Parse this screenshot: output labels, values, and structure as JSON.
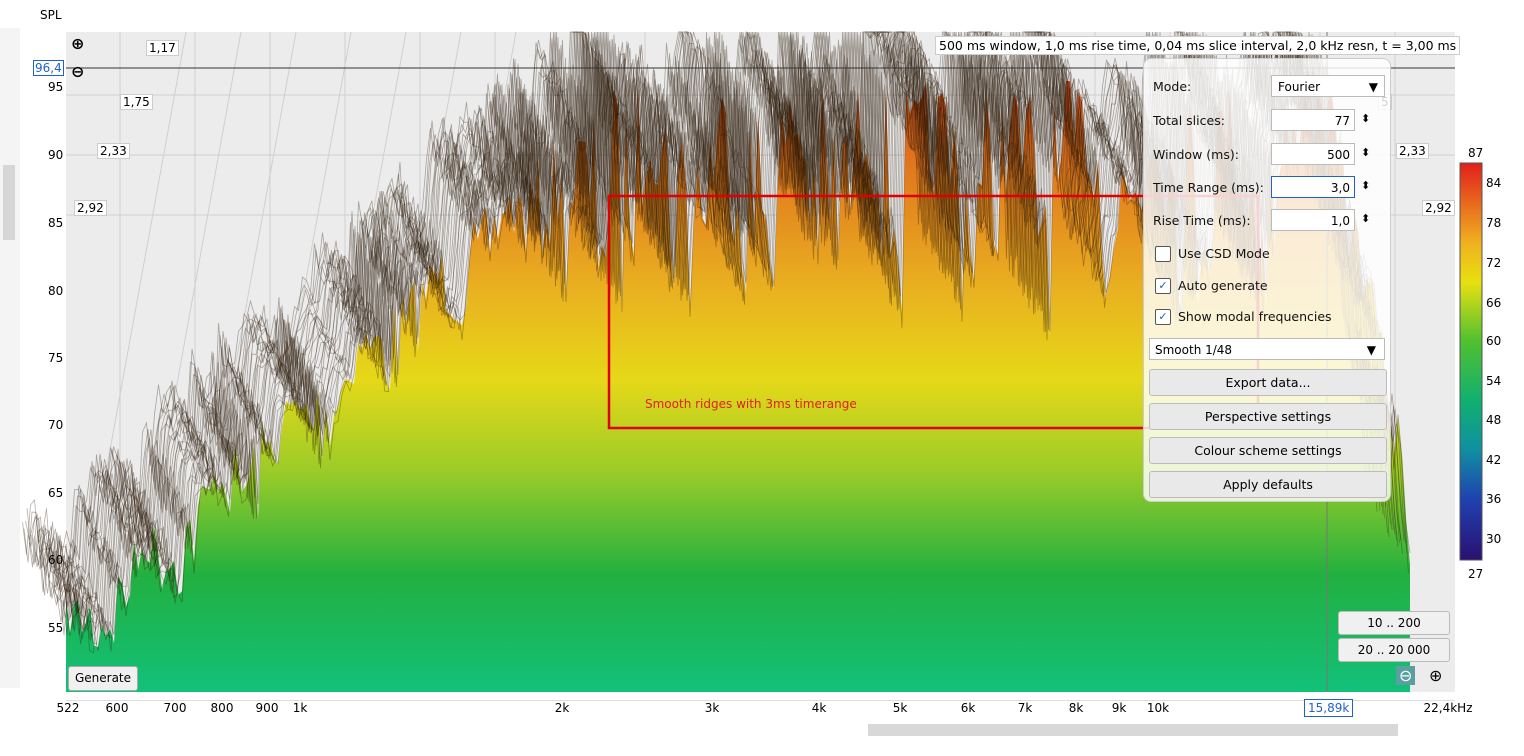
{
  "y_axis": {
    "title": "SPL",
    "cursor_value": "96,4",
    "ticks": [
      "95",
      "90",
      "85",
      "80",
      "75",
      "70",
      "65",
      "60",
      "55"
    ]
  },
  "x_axis": {
    "ticks": [
      "522",
      "600",
      "700",
      "800",
      "900",
      "1k",
      "2k",
      "3k",
      "4k",
      "5k",
      "6k",
      "7k",
      "8k",
      "9k",
      "10k",
      "22,4kHz"
    ],
    "cursor_value": "15,89k"
  },
  "time_labels": {
    "left": [
      "1,17",
      "1,75",
      "2,33",
      "2,92"
    ],
    "right": [
      "5",
      "2,33",
      "2,92"
    ]
  },
  "info": "500 ms window, 1,0 ms rise time, 0,04 ms slice interval, 2,0 kHz resn, t = 3,00 ms",
  "colour_scale": {
    "max": "87",
    "ticks": [
      "84",
      "78",
      "72",
      "66",
      "60",
      "54",
      "48",
      "42",
      "36",
      "30"
    ],
    "min": "27"
  },
  "panel": {
    "mode": {
      "label": "Mode:",
      "value": "Fourier"
    },
    "total_slices": {
      "label": "Total slices:",
      "value": "77"
    },
    "window": {
      "label": "Window (ms):",
      "value": "500"
    },
    "time_range": {
      "label": "Time Range (ms):",
      "value": "3,0"
    },
    "rise_time": {
      "label": "Rise Time (ms):",
      "value": "1,0"
    },
    "use_csd": "Use CSD Mode",
    "auto_generate": "Auto generate",
    "show_modal": "Show modal frequencies",
    "smoothing": "Smooth 1/48",
    "export": "Export data...",
    "perspective": "Perspective settings",
    "colour_scheme": "Colour scheme settings",
    "defaults": "Apply defaults"
  },
  "annotation": "Smooth ridges with 3ms timerange",
  "buttons": {
    "generate": "Generate",
    "range_low": "10 .. 200",
    "range_full": "20 .. 20 000"
  }
}
